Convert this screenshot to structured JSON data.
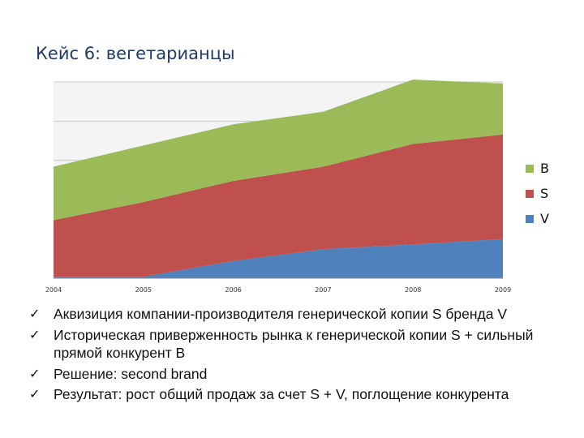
{
  "title": "Кейс 6: вегетарианцы",
  "chart_data": {
    "type": "area",
    "stacked": true,
    "x": [
      "2004",
      "2005",
      "2006",
      "2007",
      "2008",
      "2009"
    ],
    "series": [
      {
        "name": "V",
        "values": [
          2,
          2,
          22,
          37,
          43,
          50
        ],
        "color": "#4f81bd"
      },
      {
        "name": "S",
        "values": [
          72,
          95,
          102,
          105,
          128,
          133
        ],
        "color": "#c0504d"
      },
      {
        "name": "B",
        "values": [
          68,
          72,
          72,
          70,
          82,
          65
        ],
        "color": "#9bbb59"
      }
    ],
    "ylim": [
      0,
      250
    ],
    "grid": true,
    "legend": "right"
  },
  "bullets": [
    "Аквизиция компании-производителя генерической копии S бренда V",
    "Историческая приверженность рынка к генерической копии S + сильный прямой конкурент B",
    "Решение: second brand",
    "Результат: рост общий продаж за счет S + V, поглощение конкурента"
  ],
  "check_glyph": "✓"
}
